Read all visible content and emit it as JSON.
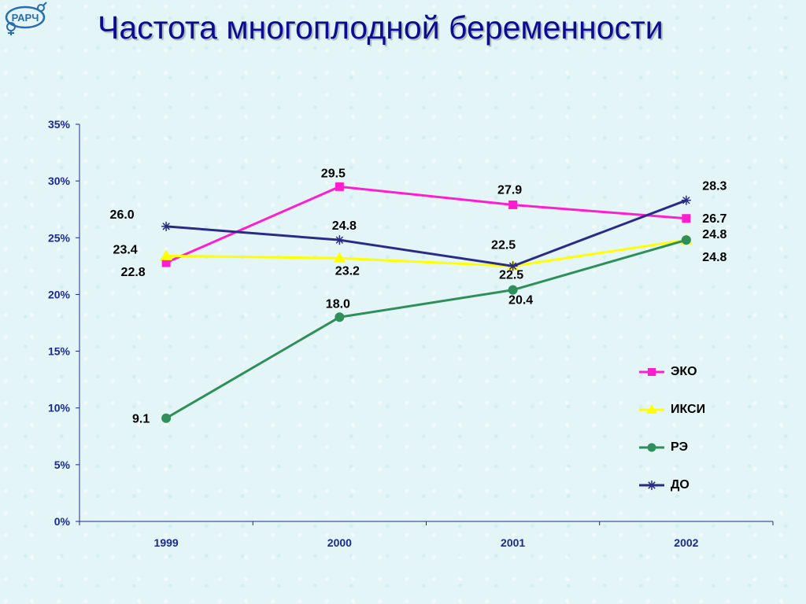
{
  "slide": {
    "title": "Частота многоплодной беременности",
    "logo_text": "РАРЧ"
  },
  "colors": {
    "title": "#0c0c92",
    "axis": "#1a2a8c",
    "eko": "#ff1ecf",
    "iksi": "#ffff00",
    "re": "#2f8f5a",
    "do": "#2b2b86"
  },
  "chart_data": {
    "type": "line",
    "categories": [
      "1999",
      "2000",
      "2001",
      "2002"
    ],
    "ylim": [
      0,
      35
    ],
    "yticks": [
      0,
      5,
      10,
      15,
      20,
      25,
      30,
      35
    ],
    "ytick_labels": [
      "0%",
      "5%",
      "10%",
      "15%",
      "20%",
      "25%",
      "30%",
      "35%"
    ],
    "legend_position": "right",
    "grid": false,
    "series": [
      {
        "name": "ЭКО",
        "key": "eko",
        "marker": "square",
        "color": "#ff1ecf",
        "values": [
          22.8,
          29.5,
          27.9,
          26.7
        ],
        "labels": [
          "22.8",
          "29.5",
          "27.9",
          "26.7"
        ]
      },
      {
        "name": "ИКСИ",
        "key": "iksi",
        "marker": "triangle",
        "color": "#ffff00",
        "values": [
          23.4,
          23.2,
          22.5,
          24.8
        ],
        "labels": [
          "23.4",
          "23.2",
          "22.5",
          "24.8"
        ]
      },
      {
        "name": "РЭ",
        "key": "re",
        "marker": "circle",
        "color": "#2f8f5a",
        "values": [
          9.1,
          18.0,
          20.4,
          24.8
        ],
        "labels": [
          "9.1",
          "18.0",
          "20.4",
          "24.8"
        ]
      },
      {
        "name": "ДО",
        "key": "do",
        "marker": "asterisk",
        "color": "#2b2b86",
        "values": [
          26.0,
          24.8,
          22.5,
          28.3
        ],
        "labels": [
          "26.0",
          "24.8",
          "22.5",
          "28.3"
        ]
      }
    ]
  }
}
